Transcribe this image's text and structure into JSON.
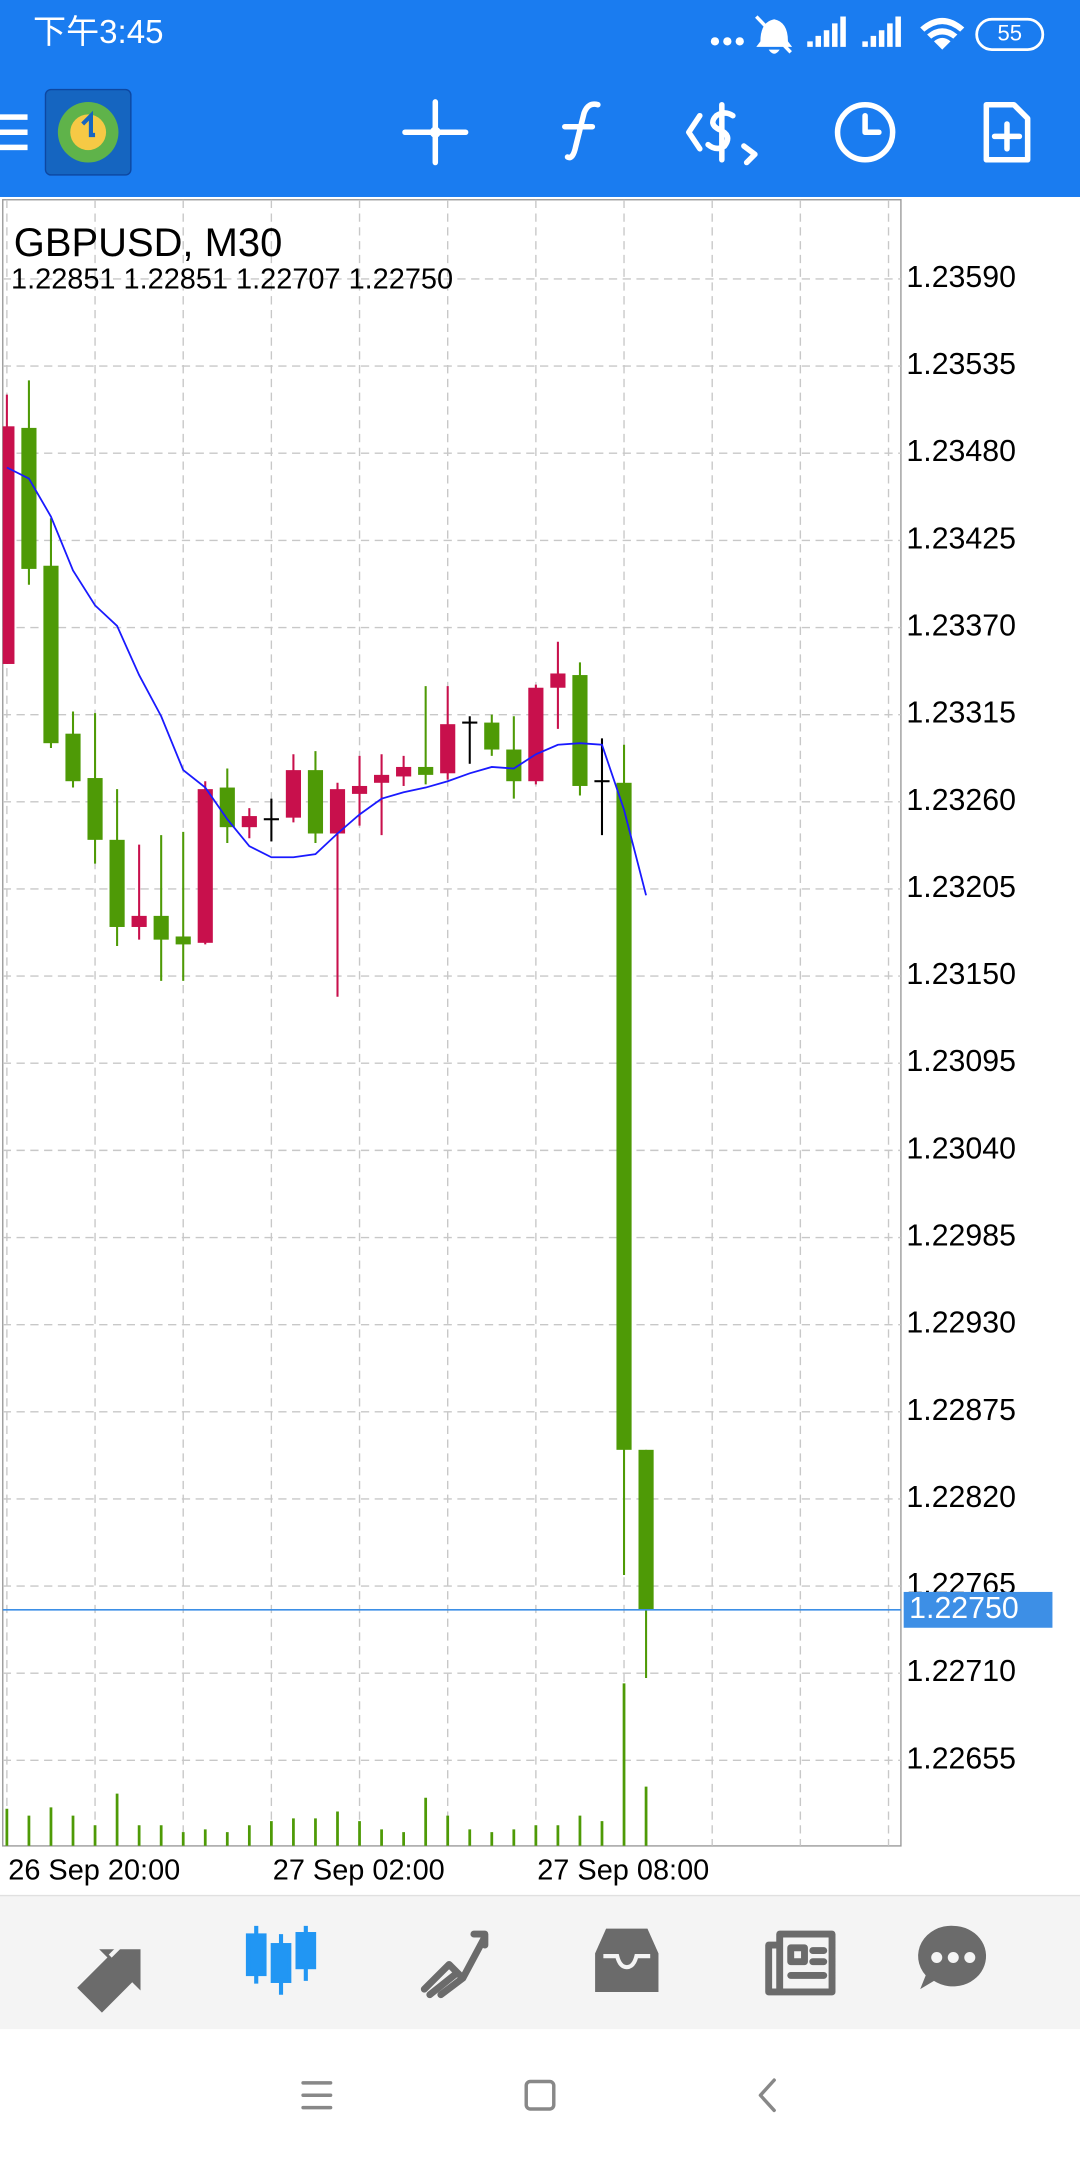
{
  "status_bar": {
    "time": "下午3:45",
    "battery": "55"
  },
  "chart_data": {
    "type": "candlestick",
    "title": "GBPUSD, M30",
    "subtitle": "1.22851 1.22851 1.22707 1.22750",
    "categories": [
      "26 Sep 20:00",
      null,
      null,
      null,
      null,
      null,
      null,
      null,
      null,
      null,
      null,
      null,
      "27 Sep 02:00",
      null,
      null,
      null,
      null,
      null,
      null,
      null,
      null,
      null,
      null,
      null,
      "27 Sep 08:00",
      null,
      null,
      null,
      null,
      null
    ],
    "open": [
      1.23347,
      1.23496,
      1.23409,
      1.23303,
      1.23275,
      1.23236,
      1.23181,
      1.23188,
      1.23175,
      1.23171,
      1.23269,
      1.23244,
      1.23249,
      1.2325,
      1.2328,
      1.2324,
      1.23265,
      1.23272,
      1.23276,
      1.23282,
      1.23278,
      1.2331,
      1.2331,
      1.23293,
      1.23273,
      1.23332,
      1.2334,
      1.23273,
      1.23272,
      1.22851
    ],
    "high": [
      1.23517,
      1.23526,
      1.23439,
      1.23317,
      1.23316,
      1.23268,
      1.23233,
      1.23239,
      1.23241,
      1.23273,
      1.23281,
      1.23256,
      1.23262,
      1.2329,
      1.23292,
      1.23272,
      1.23289,
      1.2329,
      1.23289,
      1.23333,
      1.23333,
      1.23314,
      1.23315,
      1.23314,
      1.23334,
      1.23361,
      1.23348,
      1.233,
      1.23296,
      1.22851
    ],
    "low": [
      1.23347,
      1.23397,
      1.23294,
      1.23269,
      1.23221,
      1.23169,
      1.23173,
      1.23147,
      1.23147,
      1.2317,
      1.23234,
      1.23237,
      1.23235,
      1.23247,
      1.23234,
      1.23137,
      1.23245,
      1.23239,
      1.2327,
      1.23271,
      1.23274,
      1.23284,
      1.23289,
      1.23262,
      1.23271,
      1.23306,
      1.23264,
      1.23239,
      1.22772,
      1.22707
    ],
    "close": [
      1.23497,
      1.23407,
      1.23297,
      1.23273,
      1.23236,
      1.23181,
      1.23188,
      1.23173,
      1.2317,
      1.23268,
      1.23244,
      1.23251,
      1.23249,
      1.2328,
      1.2324,
      1.23268,
      1.2327,
      1.23277,
      1.23282,
      1.23277,
      1.23309,
      1.2331,
      1.23293,
      1.23273,
      1.23332,
      1.23341,
      1.2327,
      1.23273,
      1.22851,
      1.2275
    ],
    "ma": [
      1.23471,
      1.23464,
      1.2344,
      1.23406,
      1.23384,
      1.23371,
      1.2334,
      1.23314,
      1.2328,
      1.23269,
      1.23249,
      1.23232,
      1.23225,
      1.23225,
      1.23227,
      1.2324,
      1.23252,
      1.23262,
      1.23266,
      1.23269,
      1.23273,
      1.23278,
      1.23282,
      1.23281,
      1.2329,
      1.23296,
      1.23297,
      1.23296,
      1.23255,
      1.23201
    ],
    "volume": [
      270,
      220,
      280,
      220,
      150,
      380,
      150,
      150,
      100,
      120,
      100,
      150,
      180,
      200,
      200,
      250,
      180,
      120,
      100,
      350,
      220,
      120,
      100,
      120,
      150,
      150,
      220,
      180,
      1180,
      430
    ],
    "ylim": [
      1.22601,
      1.2364
    ],
    "yticks": [
      {
        "value": 1.2359,
        "label": "1.23590"
      },
      1.23535,
      {
        "value": 1.2348,
        "label": "1.23480"
      },
      1.23425,
      {
        "value": 1.2337,
        "label": "1.23370"
      },
      1.23315,
      {
        "value": 1.2326,
        "label": "1.23260"
      },
      1.23205,
      {
        "value": 1.2315,
        "label": "1.23150"
      },
      1.23095,
      {
        "value": 1.2304,
        "label": "1.23040"
      },
      1.22985,
      {
        "value": 1.2293,
        "label": "1.22930"
      },
      1.22875,
      {
        "value": 1.2282,
        "label": "1.22820"
      },
      1.22765,
      {
        "value": 1.2271,
        "label": "1.22710"
      },
      1.22655
    ],
    "last_price": {
      "value": 1.2275,
      "label": "1.22750"
    },
    "grid": true,
    "up_color": "#c8104c",
    "down_color": "#4e9a06",
    "doji_color": "#000000",
    "ma_color": "#1a1aff",
    "volume_color": "#4e9a06",
    "last_price_color": "#3d8fe6"
  }
}
